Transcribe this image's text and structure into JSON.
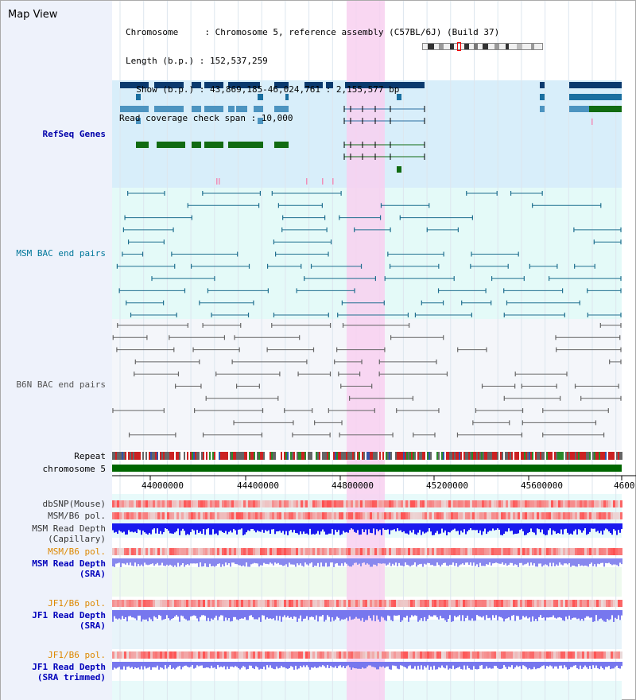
{
  "header": {
    "view_title": "Map View",
    "info_lines": [
      "Chromosome     : Chromosome 5, reference assembly (C57BL/6J) (Build 37)",
      "Length (b.p.) : 152,537,259",
      "  Show (b.p.) : 43,869,185-46,024,761 : 2,155,577 bp",
      "Read coverage check span : 10,000"
    ]
  },
  "tracks": {
    "refseq": "RefSeq Genes",
    "msm_bac": "MSM BAC end pairs",
    "b6n_bac": "B6N BAC end pairs",
    "repeat": "Repeat",
    "chromosome": "chromosome 5",
    "dbsnp": "dbSNP(Mouse)",
    "msm_b6_pol_1": "MSM/B6 pol.",
    "msm_read_depth_cap": "MSM Read Depth\n(Capillary)",
    "msm_b6_pol_2": "MSM/B6 pol.",
    "msm_read_depth_sra": "MSM Read Depth\n(SRA)",
    "jf1_b6_pol_1": "JF1/B6 pol.",
    "jf1_read_depth_sra": "JF1 Read Depth\n(SRA)",
    "jf1_b6_pol_2": "JF1/B6 pol.",
    "jf1_read_depth_trimmed": "JF1 Read Depth\n(SRA trimmed)"
  },
  "axis": {
    "ticks": [
      "44000000",
      "44400000",
      "44800000",
      "45200000",
      "45600000",
      "4600"
    ]
  },
  "colors": {
    "refseq_label": "#0000aa",
    "msm_label": "#00779a",
    "b6n_label": "#555555",
    "pol_label": "#dd8800",
    "sra_label": "#0000bb",
    "highlight": "#f8d8f4",
    "chromosome_bar": "#006600"
  }
}
